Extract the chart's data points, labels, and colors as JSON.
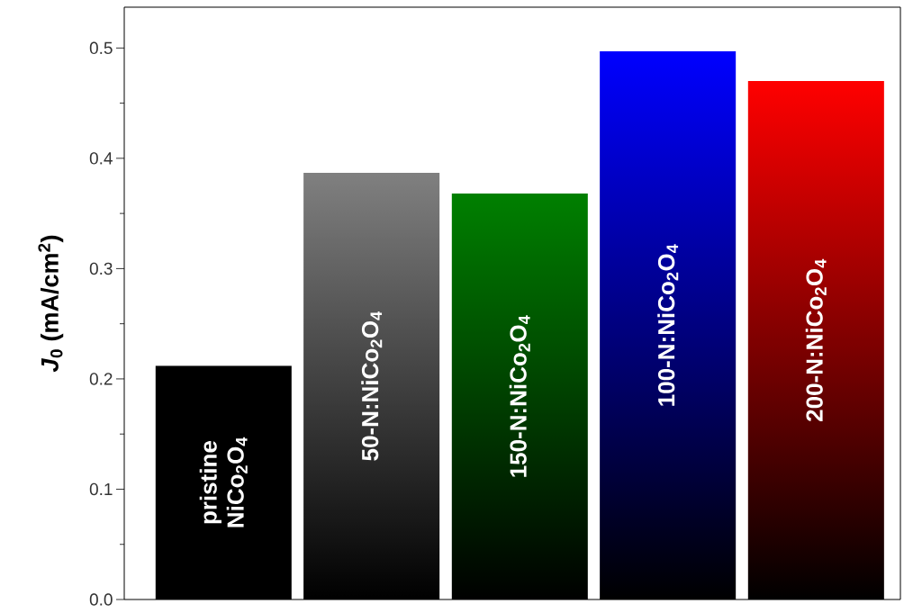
{
  "chart_data": {
    "type": "bar",
    "ylabel": "*J*$_{0}$ (mA/cm$^{2}$)",
    "categories": [
      "pristine NiCo$_{2}$O$_{4}$",
      "50-N:NiCo$_{2}$O$_{4}$",
      "150-N:NiCo$_{2}$O$_{4}$",
      "100-N:NiCo$_{2}$O$_{4}$",
      "200-N:NiCo$_{2}$O$_{4}$"
    ],
    "values": [
      0.212,
      0.387,
      0.368,
      0.497,
      0.47
    ],
    "colors": [
      "#000000",
      "#808080",
      "#008000",
      "#0000ff",
      "#ff0000"
    ],
    "ylim": [
      0,
      0.537
    ],
    "yticks": [
      {
        "value": 0,
        "label": "0.0"
      },
      0.1,
      0.2,
      0.3,
      0.4,
      0.5
    ],
    "grid": false
  }
}
